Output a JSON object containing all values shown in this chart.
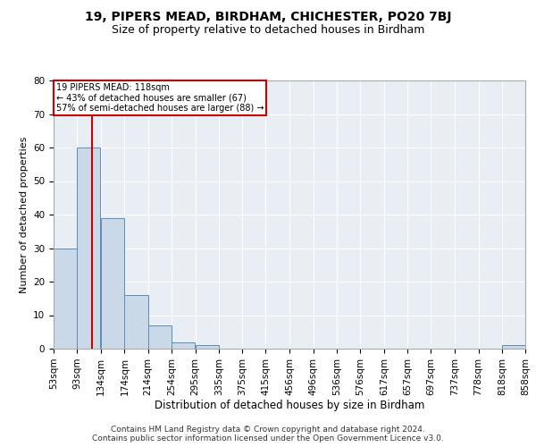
{
  "title1": "19, PIPERS MEAD, BIRDHAM, CHICHESTER, PO20 7BJ",
  "title2": "Size of property relative to detached houses in Birdham",
  "xlabel": "Distribution of detached houses by size in Birdham",
  "ylabel": "Number of detached properties",
  "bin_labels": [
    "53sqm",
    "93sqm",
    "134sqm",
    "174sqm",
    "214sqm",
    "254sqm",
    "295sqm",
    "335sqm",
    "375sqm",
    "415sqm",
    "456sqm",
    "496sqm",
    "536sqm",
    "576sqm",
    "617sqm",
    "657sqm",
    "697sqm",
    "737sqm",
    "778sqm",
    "818sqm",
    "858sqm"
  ],
  "bar_heights": [
    30,
    60,
    39,
    16,
    7,
    2,
    1,
    0,
    0,
    0,
    0,
    0,
    0,
    0,
    0,
    0,
    0,
    0,
    0,
    1,
    0
  ],
  "bar_color": "#c9d9e8",
  "bar_edge_color": "#5b8db8",
  "vline_x": 118,
  "bin_edges": [
    53,
    93,
    134,
    174,
    214,
    254,
    295,
    335,
    375,
    415,
    456,
    496,
    536,
    576,
    617,
    657,
    697,
    737,
    778,
    818,
    858
  ],
  "vline_color": "#cc0000",
  "annotation_title": "19 PIPERS MEAD: 118sqm",
  "annotation_line1": "← 43% of detached houses are smaller (67)",
  "annotation_line2": "57% of semi-detached houses are larger (88) →",
  "annotation_box_color": "#ffffff",
  "annotation_edge_color": "#cc0000",
  "ylim": [
    0,
    80
  ],
  "yticks": [
    0,
    10,
    20,
    30,
    40,
    50,
    60,
    70,
    80
  ],
  "background_color": "#e8eef4",
  "footer1": "Contains HM Land Registry data © Crown copyright and database right 2024.",
  "footer2": "Contains public sector information licensed under the Open Government Licence v3.0.",
  "title1_fontsize": 10,
  "title2_fontsize": 9,
  "xlabel_fontsize": 8.5,
  "ylabel_fontsize": 8,
  "tick_fontsize": 7.5,
  "footer_fontsize": 6.5
}
